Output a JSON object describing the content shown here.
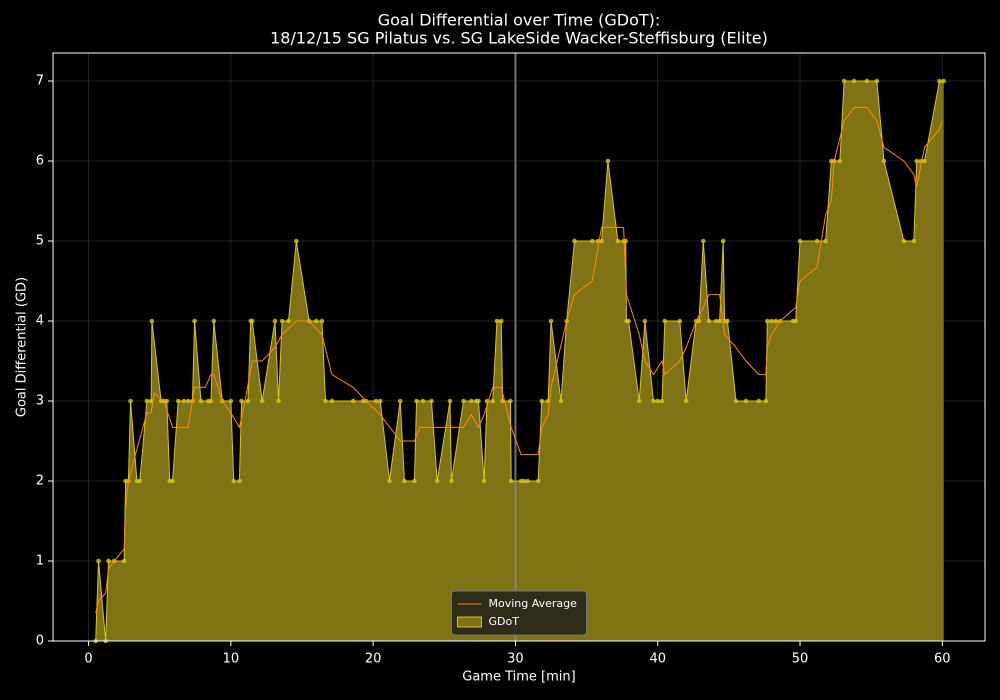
{
  "chart_data": {
    "type": "line",
    "title": "Goal Differential over Time (GDoT):",
    "subtitle": "18/12/15 SG Pilatus  vs.  SG LakeSide Wacker-Steffisburg (Elite)",
    "xlabel": "Game Time [min]",
    "ylabel": "Goal Differential (GD)",
    "xlim": [
      -2.5,
      63
    ],
    "ylim": [
      0,
      7.35
    ],
    "xticks": [
      0,
      10,
      20,
      30,
      40,
      50,
      60
    ],
    "yticks": [
      0,
      1,
      2,
      3,
      4,
      5,
      6,
      7
    ],
    "grid": true,
    "vline": 30,
    "legend": "lower center",
    "series": [
      {
        "name": "Moving Average",
        "color": "#ff8c00",
        "x": [
          0.5,
          0.7,
          1.2,
          1.4,
          1.8,
          2.5,
          2.6,
          2.8,
          3.4,
          4.1,
          4.4,
          4.6,
          5.3,
          5.9,
          7.0,
          7.45,
          8.2,
          8.6,
          8.8,
          9.4,
          10.0,
          10.6,
          11.0,
          11.5,
          12.2,
          13.1,
          13.6,
          14.6,
          15.5,
          16.4,
          17.1,
          18.6,
          19.5,
          20.5,
          21.9,
          22.9,
          23.3,
          24.1,
          26.35,
          26.9,
          27.4,
          27.8,
          28.4,
          29.0,
          29.7,
          30.4,
          31.6,
          31.85,
          32.3,
          32.5,
          33.6,
          34.15,
          35.4,
          36.05,
          37.6,
          37.8,
          38.7,
          39.1,
          39.7,
          40.3,
          40.5,
          41.55,
          42.0,
          42.7,
          43.2,
          43.6,
          44.35,
          44.7,
          45.5,
          46.2,
          47.1,
          47.6,
          47.7,
          48.0,
          48.6,
          49.7,
          50.0,
          51.2,
          51.8,
          52.2,
          52.4,
          53.1,
          53.8,
          54.7,
          55.4,
          55.9,
          57.3,
          58.0,
          58.2,
          58.75,
          59.8,
          60.0
        ],
        "values": [
          0.35,
          0.5,
          0.6,
          0.9,
          1.0,
          1.15,
          1.65,
          2.0,
          2.4,
          2.85,
          2.85,
          3.1,
          3.0,
          2.67,
          2.67,
          3.17,
          3.17,
          3.33,
          3.33,
          3.0,
          2.85,
          2.67,
          3.0,
          3.5,
          3.5,
          3.67,
          3.83,
          4.0,
          4.0,
          3.83,
          3.33,
          3.17,
          3.0,
          2.83,
          2.5,
          2.5,
          2.67,
          2.67,
          2.67,
          2.83,
          2.67,
          2.83,
          3.17,
          3.17,
          2.67,
          2.33,
          2.33,
          2.67,
          2.83,
          3.17,
          4.0,
          4.33,
          4.5,
          5.17,
          5.17,
          4.33,
          3.83,
          3.5,
          3.33,
          3.5,
          3.33,
          3.5,
          3.67,
          4.0,
          4.17,
          4.33,
          4.33,
          3.83,
          3.67,
          3.5,
          3.33,
          3.33,
          3.67,
          3.83,
          4.0,
          4.17,
          4.5,
          4.67,
          5.33,
          5.5,
          6.0,
          6.5,
          6.67,
          6.67,
          6.5,
          6.17,
          6.0,
          5.83,
          5.67,
          6.17,
          6.4,
          6.5
        ]
      },
      {
        "name": "GDoT",
        "color": "#d8c41c",
        "fill": "#7f7316",
        "marker": true,
        "x": [
          0.5,
          0.7,
          1.2,
          1.4,
          1.8,
          2.5,
          2.6,
          2.8,
          2.95,
          3.4,
          3.6,
          4.1,
          4.4,
          4.45,
          5.1,
          5.3,
          5.5,
          5.7,
          5.9,
          6.3,
          6.7,
          7.0,
          7.3,
          7.45,
          7.9,
          8.4,
          8.6,
          8.8,
          9.4,
          10.0,
          10.2,
          10.6,
          10.75,
          11.2,
          11.4,
          11.5,
          12.2,
          13.1,
          13.35,
          13.6,
          14.05,
          14.6,
          15.5,
          16.0,
          16.4,
          16.65,
          17.1,
          18.6,
          19.3,
          19.5,
          20.2,
          20.5,
          21.15,
          21.9,
          22.2,
          22.9,
          23.05,
          23.5,
          24.1,
          24.5,
          25.4,
          25.5,
          26.35,
          26.9,
          27.25,
          27.4,
          27.8,
          28.0,
          28.4,
          28.7,
          29.0,
          29.1,
          29.65,
          29.7,
          30.4,
          30.6,
          30.85,
          31.6,
          31.85,
          32.3,
          32.5,
          33.2,
          33.6,
          34.15,
          35.4,
          35.8,
          36.05,
          36.5,
          37.2,
          37.6,
          37.75,
          37.8,
          37.95,
          38.7,
          39.1,
          39.7,
          40.0,
          40.3,
          40.5,
          41.55,
          42.0,
          42.7,
          42.9,
          43.2,
          43.6,
          44.1,
          44.35,
          44.6,
          44.7,
          44.9,
          45.5,
          46.2,
          47.1,
          47.6,
          47.7,
          48.0,
          48.3,
          48.6,
          49.5,
          49.7,
          50.0,
          51.2,
          51.8,
          52.2,
          52.4,
          52.8,
          53.1,
          53.8,
          54.7,
          55.4,
          55.9,
          57.3,
          58.0,
          58.2,
          58.5,
          58.75,
          59.8,
          60.1
        ],
        "values": [
          0,
          1,
          0,
          1,
          1,
          1,
          2,
          2,
          3,
          2,
          2,
          3,
          3,
          4,
          3,
          3,
          3,
          2,
          2,
          3,
          3,
          3,
          3,
          4,
          3,
          3,
          3,
          4,
          3,
          3,
          2,
          2,
          3,
          3,
          4,
          4,
          3,
          4,
          3,
          4,
          4,
          5,
          4,
          4,
          4,
          3,
          3,
          3,
          3,
          3,
          3,
          3,
          2,
          3,
          2,
          2,
          3,
          3,
          3,
          2,
          3,
          2,
          3,
          3,
          3,
          3,
          2,
          3,
          3,
          4,
          4,
          3,
          3,
          2,
          2,
          2,
          2,
          2,
          3,
          3,
          4,
          3,
          4,
          5,
          5,
          5,
          5,
          6,
          5,
          5,
          5,
          4,
          4,
          3,
          4,
          3,
          3,
          3,
          4,
          4,
          3,
          4,
          4,
          5,
          4,
          4,
          4,
          5,
          4,
          4,
          3,
          3,
          3,
          3,
          4,
          4,
          4,
          4,
          4,
          4,
          5,
          5,
          5,
          6,
          6,
          6,
          7,
          7,
          7,
          7,
          6,
          5,
          5,
          6,
          6,
          6,
          7,
          7
        ]
      }
    ]
  }
}
